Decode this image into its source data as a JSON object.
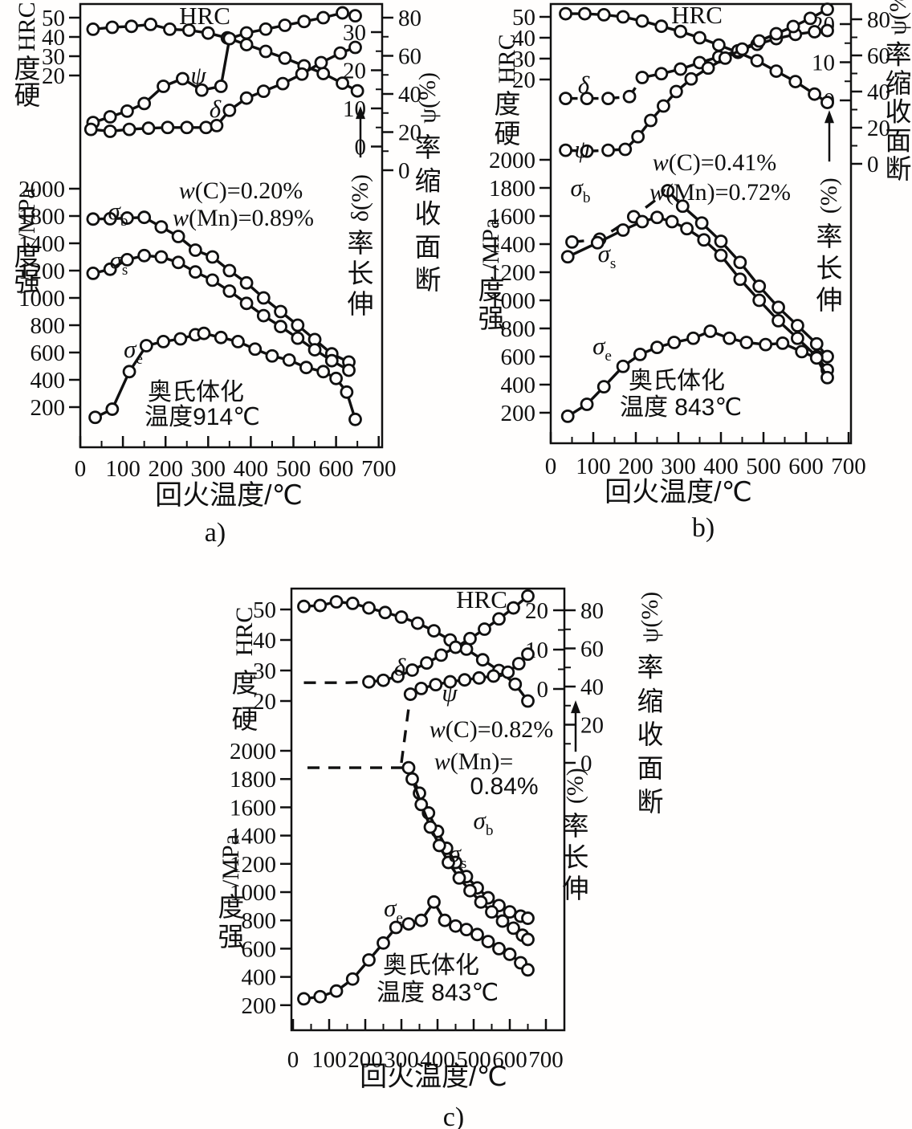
{
  "figure": {
    "ink_color": "#101010",
    "background_color": "#fffefd"
  },
  "chart_data": [
    {
      "id": "a",
      "type": "line",
      "caption": "a)",
      "xlabel": "回火温度/℃",
      "xlim": [
        0,
        700
      ],
      "x_ticks": [
        0,
        100,
        200,
        300,
        400,
        500,
        600,
        700
      ],
      "grid": false,
      "legend": "inline curve labels",
      "axes": {
        "hardness": {
          "label": "硬度HRC",
          "ticks": [
            50,
            40,
            30,
            20
          ]
        },
        "strength": {
          "label": "强度/MPa",
          "ticks": [
            2000,
            1800,
            1400,
            1200,
            1000,
            800,
            600,
            400,
            200
          ]
        },
        "elongation": {
          "label": "伸长率δ(%)",
          "ticks": [
            30,
            20,
            10,
            0
          ]
        },
        "reduction": {
          "label": "断面收缩率ψ(%)",
          "ticks": [
            80,
            60,
            40,
            20,
            0
          ]
        }
      },
      "annotations": [
        "w(C)=0.20%",
        "w(Mn)=0.89%",
        "奥氏体化",
        "温度914℃"
      ],
      "series": [
        {
          "name": "hrc",
          "label": "HRC",
          "axis": "hardness",
          "dashed_segments": 0,
          "marker_from": 0,
          "x": [
            30,
            75,
            120,
            165,
            210,
            255,
            300,
            345,
            390,
            435,
            480,
            525,
            570,
            615,
            650
          ],
          "y": [
            44,
            45,
            45.5,
            46.5,
            44,
            43.5,
            42,
            39.5,
            36,
            32.5,
            29,
            25,
            21,
            16,
            12
          ]
        },
        {
          "name": "psi",
          "label": "ψ",
          "axis": "reduction",
          "dashed_segments": 0,
          "marker_from": 0,
          "x": [
            30,
            70,
            110,
            150,
            195,
            240,
            285,
            330,
            350,
            390,
            435,
            480,
            525,
            570,
            615,
            645
          ],
          "y": [
            25,
            28,
            31,
            35,
            44,
            48,
            42,
            44,
            69,
            72,
            74,
            76,
            78,
            80,
            82.5,
            81
          ]
        },
        {
          "name": "delta",
          "label": "δ",
          "axis": "elongation",
          "dashed_segments": 0,
          "marker_from": 0,
          "x": [
            25,
            70,
            115,
            160,
            205,
            250,
            295,
            320,
            350,
            390,
            430,
            475,
            520,
            565,
            610,
            645
          ],
          "y": [
            4.5,
            4,
            4.5,
            4.8,
            5,
            5,
            5,
            5.5,
            9.5,
            12.7,
            14.5,
            16.5,
            19,
            22,
            24.5,
            26
          ]
        },
        {
          "name": "sigma_b",
          "label": "σ_b",
          "axis": "strength",
          "dashed_segments": 0,
          "marker_from": 0,
          "x": [
            30,
            70,
            110,
            150,
            190,
            230,
            270,
            310,
            350,
            390,
            430,
            470,
            510,
            550,
            590,
            630
          ],
          "y": [
            1755,
            1760,
            1770,
            1780,
            1640,
            1500,
            1350,
            1300,
            1200,
            1110,
            1000,
            900,
            800,
            695,
            590,
            530
          ]
        },
        {
          "name": "sigma_s",
          "label": "σ_s",
          "axis": "strength",
          "dashed_segments": 0,
          "marker_from": 0,
          "x": [
            30,
            70,
            110,
            150,
            190,
            230,
            270,
            310,
            350,
            390,
            430,
            470,
            510,
            550,
            590,
            630
          ],
          "y": [
            1180,
            1210,
            1280,
            1310,
            1300,
            1260,
            1190,
            1130,
            1050,
            960,
            870,
            790,
            705,
            620,
            540,
            470
          ]
        },
        {
          "name": "sigma_e",
          "label": "σ_e",
          "axis": "strength",
          "dashed_segments": 0,
          "marker_from": 0,
          "x": [
            35,
            75,
            115,
            155,
            195,
            235,
            270,
            290,
            330,
            370,
            410,
            450,
            490,
            530,
            570,
            600,
            625,
            645
          ],
          "y": [
            125,
            185,
            460,
            650,
            680,
            700,
            730,
            740,
            710,
            680,
            625,
            575,
            545,
            490,
            460,
            410,
            310,
            110
          ]
        }
      ]
    },
    {
      "id": "b",
      "type": "line",
      "caption": "b)",
      "xlabel": "回火温度/℃",
      "xlim": [
        0,
        700
      ],
      "x_ticks": [
        0,
        100,
        200,
        300,
        400,
        500,
        600,
        700
      ],
      "grid": false,
      "legend": "inline curve labels",
      "axes": {
        "hardness": {
          "label": "硬度HRC",
          "ticks": [
            50,
            40,
            30,
            20
          ]
        },
        "strength": {
          "label": "强度/MPa",
          "ticks": [
            2000,
            1800,
            1600,
            1400,
            1200,
            1000,
            800,
            600,
            400,
            200
          ]
        },
        "elongation": {
          "label": "伸长率(%)",
          "ticks": [
            20,
            10,
            0
          ]
        },
        "reduction": {
          "label": "断面收缩率ψ(%)",
          "ticks": [
            80,
            60,
            40,
            20,
            0
          ]
        }
      },
      "annotations": [
        "w(C)=0.41%",
        "w(Mn)=0.72%",
        "奥氏体化",
        "温度 843℃"
      ],
      "series": [
        {
          "name": "hrc",
          "label": "HRC",
          "axis": "hardness",
          "dashed_segments": 0,
          "marker_from": 0,
          "x": [
            35,
            80,
            125,
            170,
            215,
            260,
            305,
            350,
            395,
            440,
            485,
            530,
            575,
            620,
            650
          ],
          "y": [
            51.5,
            51.5,
            51,
            50,
            48,
            45.5,
            43,
            40,
            36.5,
            33,
            29,
            24,
            19,
            13,
            9
          ]
        },
        {
          "name": "delta",
          "label": "δ",
          "axis": "elongation",
          "dashed_segments": 4,
          "marker_from": 0,
          "x": [
            35,
            85,
            135,
            185,
            215,
            260,
            305,
            350,
            395,
            440,
            485,
            530,
            575,
            620,
            650
          ],
          "y": [
            0.5,
            0.5,
            0.5,
            1,
            6,
            7,
            8.2,
            9.9,
            11.4,
            13,
            14.7,
            16.2,
            17.3,
            18,
            18.3
          ]
        },
        {
          "name": "psi",
          "label": "ψ",
          "axis": "reduction",
          "dashed_segments": 6,
          "marker_from": 0,
          "x": [
            35,
            85,
            135,
            175,
            205,
            235,
            265,
            295,
            330,
            370,
            410,
            450,
            490,
            530,
            570,
            610,
            650
          ],
          "y": [
            7.5,
            7,
            7.5,
            8,
            15,
            24,
            32,
            40,
            47,
            53,
            58.5,
            63.5,
            68,
            72,
            76,
            80.5,
            85.5
          ]
        },
        {
          "name": "sigma_b",
          "label": "σ_b",
          "axis": "strength",
          "dashed_segments": 3,
          "marker_from": 0,
          "x": [
            50,
            115,
            195,
            275,
            310,
            355,
            400,
            445,
            490,
            535,
            580,
            625,
            650
          ],
          "y": [
            1415,
            1435,
            1595,
            1780,
            1670,
            1550,
            1420,
            1270,
            1100,
            950,
            820,
            690,
            600
          ]
        },
        {
          "name": "sigma_s",
          "label": "σ_s",
          "axis": "strength",
          "dashed_segments": 0,
          "marker_from": 0,
          "x": [
            40,
            110,
            170,
            215,
            250,
            285,
            320,
            360,
            400,
            445,
            490,
            535,
            580,
            625,
            650
          ],
          "y": [
            1310,
            1410,
            1500,
            1560,
            1590,
            1560,
            1510,
            1430,
            1320,
            1150,
            1000,
            855,
            730,
            600,
            505
          ]
        },
        {
          "name": "sigma_e",
          "label": "σ_e",
          "axis": "strength",
          "dashed_segments": 0,
          "marker_from": 0,
          "x": [
            40,
            85,
            125,
            170,
            210,
            250,
            290,
            335,
            375,
            420,
            460,
            505,
            545,
            590,
            625,
            650
          ],
          "y": [
            175,
            260,
            385,
            530,
            615,
            665,
            700,
            730,
            780,
            730,
            700,
            685,
            695,
            635,
            590,
            450
          ]
        }
      ]
    },
    {
      "id": "c",
      "type": "line",
      "caption": "c)",
      "xlabel": "回火温度/℃",
      "xlim": [
        0,
        700
      ],
      "x_ticks": [
        0,
        100,
        200,
        300,
        400,
        500,
        600,
        700
      ],
      "grid": false,
      "legend": "inline curve labels",
      "axes": {
        "hardness": {
          "label": "硬度HRC",
          "ticks": [
            50,
            40,
            30,
            20
          ]
        },
        "strength": {
          "label": "强度/MPa",
          "ticks": [
            2000,
            1800,
            1600,
            1400,
            1200,
            1000,
            800,
            600,
            400,
            200
          ]
        },
        "elongation": {
          "label": "伸长率(%)",
          "ticks": [
            20,
            10,
            0
          ]
        },
        "reduction": {
          "label": "断面收缩率ψ(%)",
          "ticks": [
            80,
            60,
            40,
            20,
            0
          ]
        }
      },
      "annotations": [
        "w(C)=0.82%",
        "w(Mn)=",
        "0.84%",
        "奥氏体化",
        "温度 843℃"
      ],
      "series": [
        {
          "name": "hrc",
          "label": "HRC",
          "axis": "hardness",
          "dashed_segments": 0,
          "marker_from": 0,
          "x": [
            30,
            75,
            120,
            165,
            210,
            255,
            300,
            345,
            390,
            435,
            480,
            525,
            570,
            615,
            650
          ],
          "y": [
            51,
            51.3,
            52.5,
            52,
            50.5,
            49,
            47.5,
            45.5,
            43,
            40,
            37,
            33.5,
            30,
            25.5,
            20
          ]
        },
        {
          "name": "delta",
          "label": "δ",
          "axis": "elongation",
          "dashed_segments": 3,
          "marker_from": 3,
          "x": [
            30,
            90,
            150,
            210,
            250,
            290,
            330,
            370,
            410,
            450,
            490,
            530,
            570,
            610,
            650
          ],
          "y": [
            1.6,
            1.6,
            1.6,
            1.8,
            2.2,
            3.2,
            4.8,
            6.6,
            8.6,
            10.6,
            12.8,
            15.2,
            17.8,
            20.6,
            23.6
          ]
        },
        {
          "name": "psi",
          "label": "ψ",
          "axis": "reduction",
          "dashed_segments": 1,
          "marker_from": 1,
          "x": [
            300,
            325,
            355,
            395,
            435,
            475,
            515,
            555,
            595,
            625,
            650
          ],
          "y": [
            0,
            36,
            39,
            41,
            42.5,
            43.5,
            44.5,
            45.5,
            47.5,
            52,
            57
          ]
        },
        {
          "name": "sigma_b",
          "label": "σ_b",
          "axis": "strength",
          "dashed_segments": 4,
          "marker_from": 4,
          "x": [
            40,
            110,
            180,
            250,
            320,
            350,
            375,
            400,
            425,
            450,
            480,
            510,
            540,
            570,
            600,
            630,
            650
          ],
          "y": [
            1880,
            1880,
            1880,
            1880,
            1880,
            1700,
            1560,
            1430,
            1310,
            1210,
            1110,
            1030,
            960,
            905,
            860,
            830,
            815
          ]
        },
        {
          "name": "sigma_s",
          "label": "σ_s",
          "axis": "strength",
          "dashed_segments": 0,
          "marker_from": 0,
          "x": [
            330,
            355,
            380,
            405,
            430,
            460,
            490,
            520,
            550,
            580,
            610,
            635,
            650
          ],
          "y": [
            1800,
            1620,
            1460,
            1330,
            1210,
            1100,
            1010,
            930,
            860,
            795,
            745,
            695,
            665
          ]
        },
        {
          "name": "sigma_e",
          "label": "σ_e",
          "axis": "strength",
          "dashed_segments": 0,
          "marker_from": 0,
          "x": [
            30,
            75,
            120,
            165,
            210,
            250,
            285,
            320,
            355,
            390,
            420,
            450,
            480,
            510,
            540,
            570,
            600,
            630,
            650
          ],
          "y": [
            245,
            260,
            300,
            385,
            520,
            640,
            750,
            775,
            800,
            930,
            800,
            760,
            735,
            700,
            650,
            600,
            560,
            500,
            450
          ]
        }
      ]
    }
  ]
}
